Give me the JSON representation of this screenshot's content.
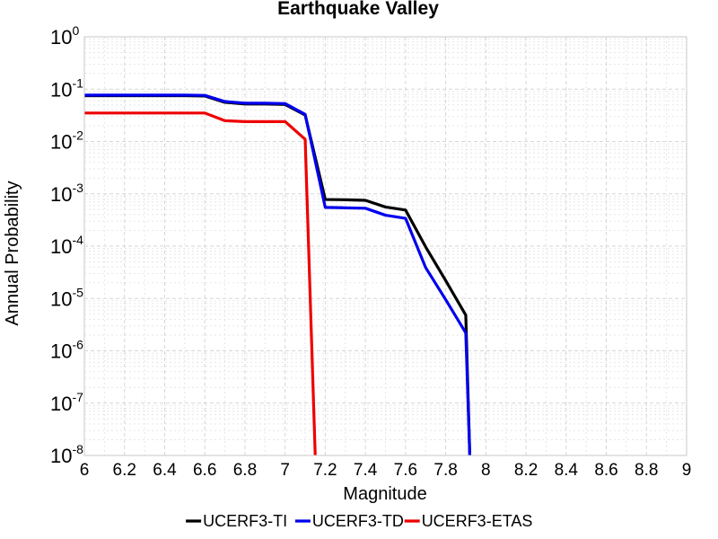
{
  "chart_data": {
    "type": "line",
    "title": "Earthquake Valley",
    "xlabel": "Magnitude",
    "ylabel": "Annual Probability",
    "xlim": [
      6,
      9
    ],
    "ylim": [
      1e-08,
      1
    ],
    "yscale": "log",
    "grid": true,
    "legend_position": "bottom",
    "xticks": [
      "6",
      "6.2",
      "6.4",
      "6.6",
      "6.8",
      "7",
      "7.2",
      "7.4",
      "7.6",
      "7.8",
      "8",
      "8.2",
      "8.4",
      "8.6",
      "8.8",
      "9"
    ],
    "yticks": [
      {
        "base": "10",
        "exp": "0"
      },
      {
        "base": "10",
        "exp": "-1"
      },
      {
        "base": "10",
        "exp": "-2"
      },
      {
        "base": "10",
        "exp": "-3"
      },
      {
        "base": "10",
        "exp": "-4"
      },
      {
        "base": "10",
        "exp": "-5"
      },
      {
        "base": "10",
        "exp": "-6"
      },
      {
        "base": "10",
        "exp": "-7"
      },
      {
        "base": "10",
        "exp": "-8"
      }
    ],
    "series": [
      {
        "name": "UCERF3-TI",
        "color": "#000000",
        "x": [
          6.0,
          6.1,
          6.2,
          6.3,
          6.4,
          6.5,
          6.6,
          6.7,
          6.8,
          6.9,
          7.0,
          7.1,
          7.2,
          7.3,
          7.4,
          7.5,
          7.6,
          7.7,
          7.8,
          7.9,
          7.92
        ],
        "y": [
          0.075,
          0.075,
          0.075,
          0.075,
          0.075,
          0.075,
          0.074,
          0.056,
          0.052,
          0.052,
          0.051,
          0.032,
          0.00078,
          0.00077,
          0.00075,
          0.00056,
          0.00049,
          9.7e-05,
          2.2e-05,
          4.8e-06,
          1e-08
        ]
      },
      {
        "name": "UCERF3-TD",
        "color": "#0000ee",
        "x": [
          6.0,
          6.1,
          6.2,
          6.3,
          6.4,
          6.5,
          6.6,
          6.7,
          6.8,
          6.9,
          7.0,
          7.1,
          7.2,
          7.3,
          7.4,
          7.5,
          7.6,
          7.7,
          7.8,
          7.9,
          7.92
        ],
        "y": [
          0.077,
          0.077,
          0.077,
          0.077,
          0.077,
          0.077,
          0.076,
          0.058,
          0.054,
          0.054,
          0.053,
          0.033,
          0.00055,
          0.00054,
          0.00053,
          0.00039,
          0.00034,
          3.9e-05,
          9.5e-06,
          2.2e-06,
          1e-08
        ]
      },
      {
        "name": "UCERF3-ETAS",
        "color": "#ee0000",
        "x": [
          6.0,
          6.1,
          6.2,
          6.3,
          6.4,
          6.5,
          6.6,
          6.7,
          6.8,
          6.9,
          7.0,
          7.1,
          7.15
        ],
        "y": [
          0.035,
          0.035,
          0.035,
          0.035,
          0.035,
          0.035,
          0.035,
          0.025,
          0.024,
          0.024,
          0.024,
          0.011,
          1e-08
        ]
      }
    ]
  }
}
